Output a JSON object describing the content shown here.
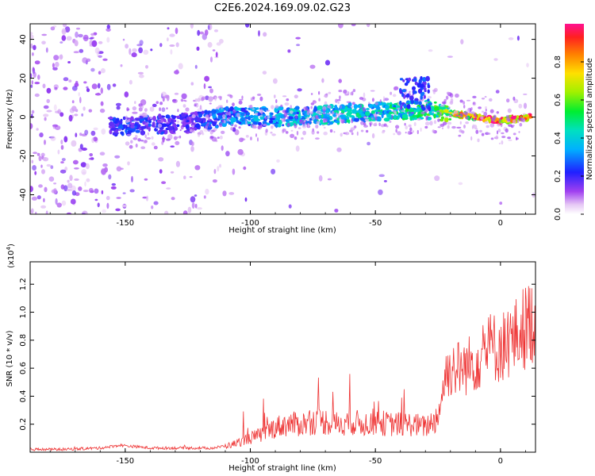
{
  "title": "C2E6.2024.169.09.02.G23",
  "chart_data": [
    {
      "type": "heatmap",
      "xlabel": "Height of straight line (km)",
      "ylabel": "Frequency (Hz)",
      "xlim": [
        -188,
        14
      ],
      "ylim": [
        -50,
        48
      ],
      "xticks": [
        -150,
        -100,
        -50,
        0
      ],
      "yticks": [
        -40,
        -20,
        0,
        20,
        40
      ],
      "colorbar": {
        "label": "Normalized spectral amplitude",
        "range": [
          0,
          1
        ],
        "ticks": [
          "0.0",
          "0.2",
          "0.4",
          "0.6",
          "0.8"
        ],
        "tick_values": [
          0.0,
          0.2,
          0.4,
          0.6,
          0.8
        ]
      },
      "ridge": {
        "x": [
          -155,
          -140,
          -125,
          -110,
          -90,
          -70,
          -50,
          -40,
          -30,
          -20,
          -10,
          0,
          10
        ],
        "y": [
          -5,
          -4,
          -3,
          0,
          0,
          1,
          3,
          3,
          4,
          2,
          0,
          -2,
          0
        ],
        "amplitude": [
          0.25,
          0.25,
          0.2,
          0.35,
          0.4,
          0.45,
          0.45,
          0.5,
          0.55,
          0.7,
          0.95,
          0.95,
          0.95
        ]
      }
    },
    {
      "type": "line",
      "xlabel": "Height of straight line (km)",
      "ylabel": "SNR (10 * v/v)",
      "multiplier": "(x10",
      "multiplier_exp": "4",
      "multiplier_close": ")",
      "xlim": [
        -188,
        14
      ],
      "ylim": [
        0,
        1.36
      ],
      "xticks": [
        -150,
        -100,
        -50,
        0
      ],
      "yticks": [
        0.2,
        0.4,
        0.6,
        0.8,
        1.0,
        1.2
      ],
      "ytick_labels": [
        "0.2",
        "0.4",
        "0.6",
        "0.8",
        "1.0",
        "1.2"
      ],
      "color": "#ee3333",
      "series": [
        {
          "x": [
            -188,
            -175,
            -160,
            -152,
            -140,
            -125,
            -115,
            -108,
            -100,
            -95,
            -90,
            -85,
            -80,
            -75,
            -70,
            -65,
            -60,
            -55,
            -50,
            -45,
            -40,
            -35,
            -30,
            -25,
            -22,
            -20,
            -15,
            -10,
            -5,
            0,
            5,
            10,
            14
          ],
          "y": [
            0.02,
            0.02,
            0.03,
            0.05,
            0.03,
            0.03,
            0.03,
            0.05,
            0.1,
            0.13,
            0.18,
            0.2,
            0.2,
            0.22,
            0.22,
            0.2,
            0.22,
            0.2,
            0.22,
            0.2,
            0.2,
            0.2,
            0.18,
            0.25,
            0.55,
            0.6,
            0.6,
            0.65,
            0.75,
            0.75,
            0.8,
            0.9,
            0.95
          ]
        }
      ]
    }
  ]
}
